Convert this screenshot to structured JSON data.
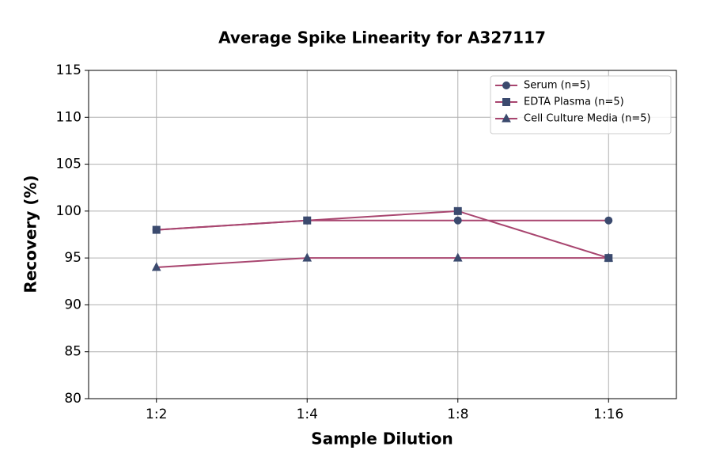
{
  "chart_data": {
    "type": "line",
    "title": "Average Spike Linearity for A327117",
    "x_label": "Sample Dilution",
    "y_label": "Recovery (%)",
    "categories": [
      "1:2",
      "1:4",
      "1:8",
      "1:16"
    ],
    "series": [
      {
        "name": "Serum (n=5)",
        "color": "#a8456f",
        "marker": "circle",
        "marker_color": "#3b4a6e",
        "values": [
          98,
          99,
          99,
          99
        ]
      },
      {
        "name": "EDTA Plasma (n=5)",
        "color": "#a8456f",
        "marker": "square",
        "marker_color": "#3b4a6e",
        "values": [
          98,
          99,
          100,
          95
        ]
      },
      {
        "name": "Cell Culture Media (n=5)",
        "color": "#a8456f",
        "marker": "triangle",
        "marker_color": "#3b4a6e",
        "values": [
          94,
          95,
          95,
          95
        ]
      }
    ],
    "ylim": [
      80,
      115
    ],
    "yticks": [
      80,
      85,
      90,
      95,
      100,
      105,
      110,
      115
    ],
    "grid": true,
    "legend": "upper right"
  }
}
